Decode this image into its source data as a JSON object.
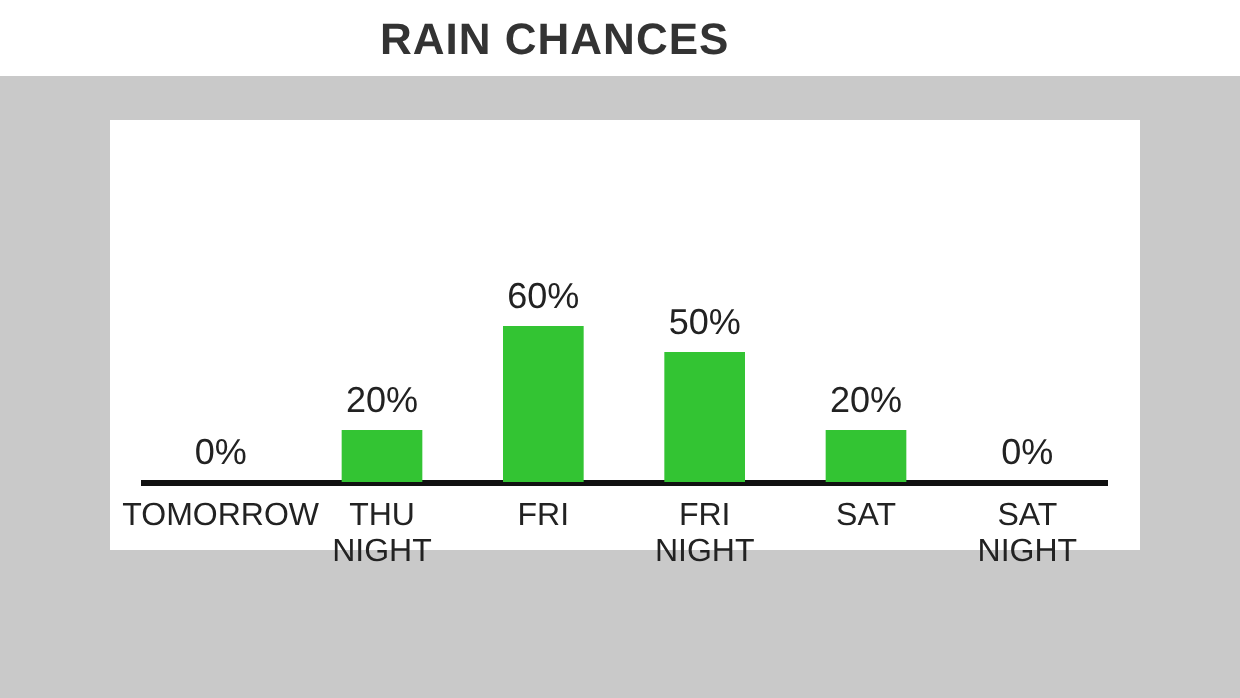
{
  "chart_data": {
    "type": "bar",
    "title": "RAIN CHANCES",
    "categories": [
      "TOMORROW",
      "THU NIGHT",
      "FRI",
      "FRI NIGHT",
      "SAT",
      "SAT NIGHT"
    ],
    "values": [
      0,
      20,
      60,
      50,
      20,
      0
    ],
    "value_labels": [
      "0%",
      "20%",
      "60%",
      "50%",
      "20%",
      "0%"
    ],
    "color": "#33c433"
  }
}
